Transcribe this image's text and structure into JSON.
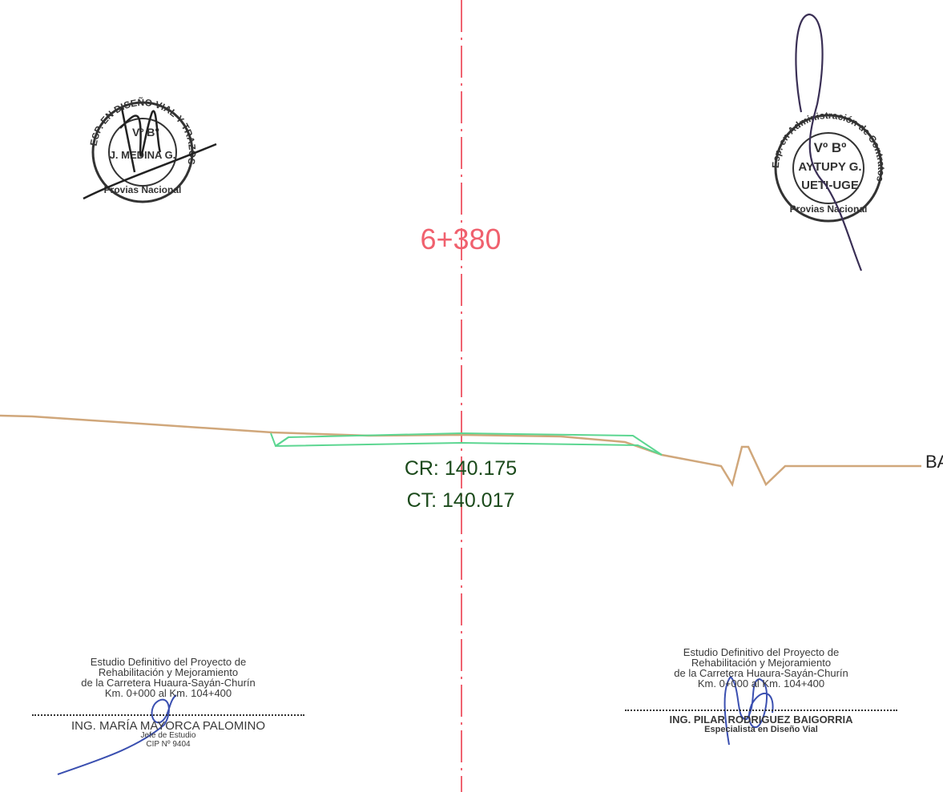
{
  "station": {
    "label": "6+380",
    "color": "#f0616e"
  },
  "elevations": {
    "cr": "CR: 140.175",
    "ct": "CT: 140.017",
    "color": "#1b4a1b"
  },
  "edge_label": "BA",
  "colors": {
    "terrain": "#d0a77b",
    "section": "#5cd691",
    "axis": "#f06371",
    "ink_blue": "#3a4fb0",
    "stamp": "#3a3a3a"
  },
  "stamp_left": {
    "ring_text": "ESP. EN DISEÑO VIAL Y TRAZOS",
    "bottom_text": "Provias Nacional",
    "center_top": "Vº B°",
    "center_name": "J. MEDINA G."
  },
  "stamp_right": {
    "ring_text": "Esp. en Administración de Contratos",
    "bottom_text": "Provias Nacional",
    "center_top": "Vº Bº",
    "center_name": "AYTUPY G.",
    "center_unit": "UETI-UGE"
  },
  "title_block_left": {
    "line1": "Estudio Definitivo del Proyecto de",
    "line2": "Rehabilitación y Mejoramiento",
    "line3": "de la Carretera Huaura-Sayán-Churín",
    "line4": "Km. 0+000 al Km. 104+400",
    "name": "ING. MARÍA  MAYORCA  PALOMINO",
    "role": "Jefe de Estudio",
    "cip": "CIP  Nº 9404"
  },
  "title_block_right": {
    "line1": "Estudio Definitivo del Proyecto de",
    "line2": "Rehabilitación y Mejoramiento",
    "line3": "de la Carretera Huaura-Sayán-Churín",
    "line4": "Km. 0+000 al Km. 104+400",
    "name": "ING. PILAR  RODRIGUEZ  BAIGORRIA",
    "role": "Especialista en Diseño Vial"
  }
}
